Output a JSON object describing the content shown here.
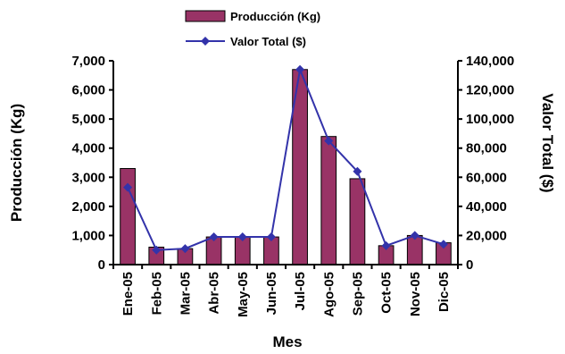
{
  "chart_data": {
    "type": "bar",
    "title": "",
    "categories": [
      "Ene-05",
      "Feb-05",
      "Mar-05",
      "Abr-05",
      "May-05",
      "Jun-05",
      "Jul-05",
      "Ago-05",
      "Sep-05",
      "Oct-05",
      "Nov-05",
      "Dic-05"
    ],
    "series": [
      {
        "name": "Producción (Kg)",
        "type": "bar",
        "axis": "left",
        "color": "#993366",
        "values": [
          3300,
          600,
          550,
          950,
          950,
          950,
          6700,
          4400,
          2950,
          650,
          1000,
          750
        ]
      },
      {
        "name": "Valor Total ($)",
        "type": "line",
        "axis": "right",
        "color": "#3333aa",
        "values": [
          53000,
          10000,
          11000,
          19000,
          19000,
          19000,
          134000,
          85000,
          64000,
          13000,
          20000,
          14000
        ]
      }
    ],
    "xlabel": "Mes",
    "ylabel": "Producción (Kg)",
    "y2label": "Valor Total ($)",
    "ylim": [
      0,
      7000
    ],
    "y2lim": [
      0,
      140000
    ],
    "yticks": [
      "0",
      "1,000",
      "2,000",
      "3,000",
      "4,000",
      "5,000",
      "6,000",
      "7,000"
    ],
    "y2ticks": [
      "0",
      "20,000",
      "40,000",
      "60,000",
      "80,000",
      "100,000",
      "120,000",
      "140,000"
    ],
    "grid": false,
    "legend_position": "top"
  }
}
